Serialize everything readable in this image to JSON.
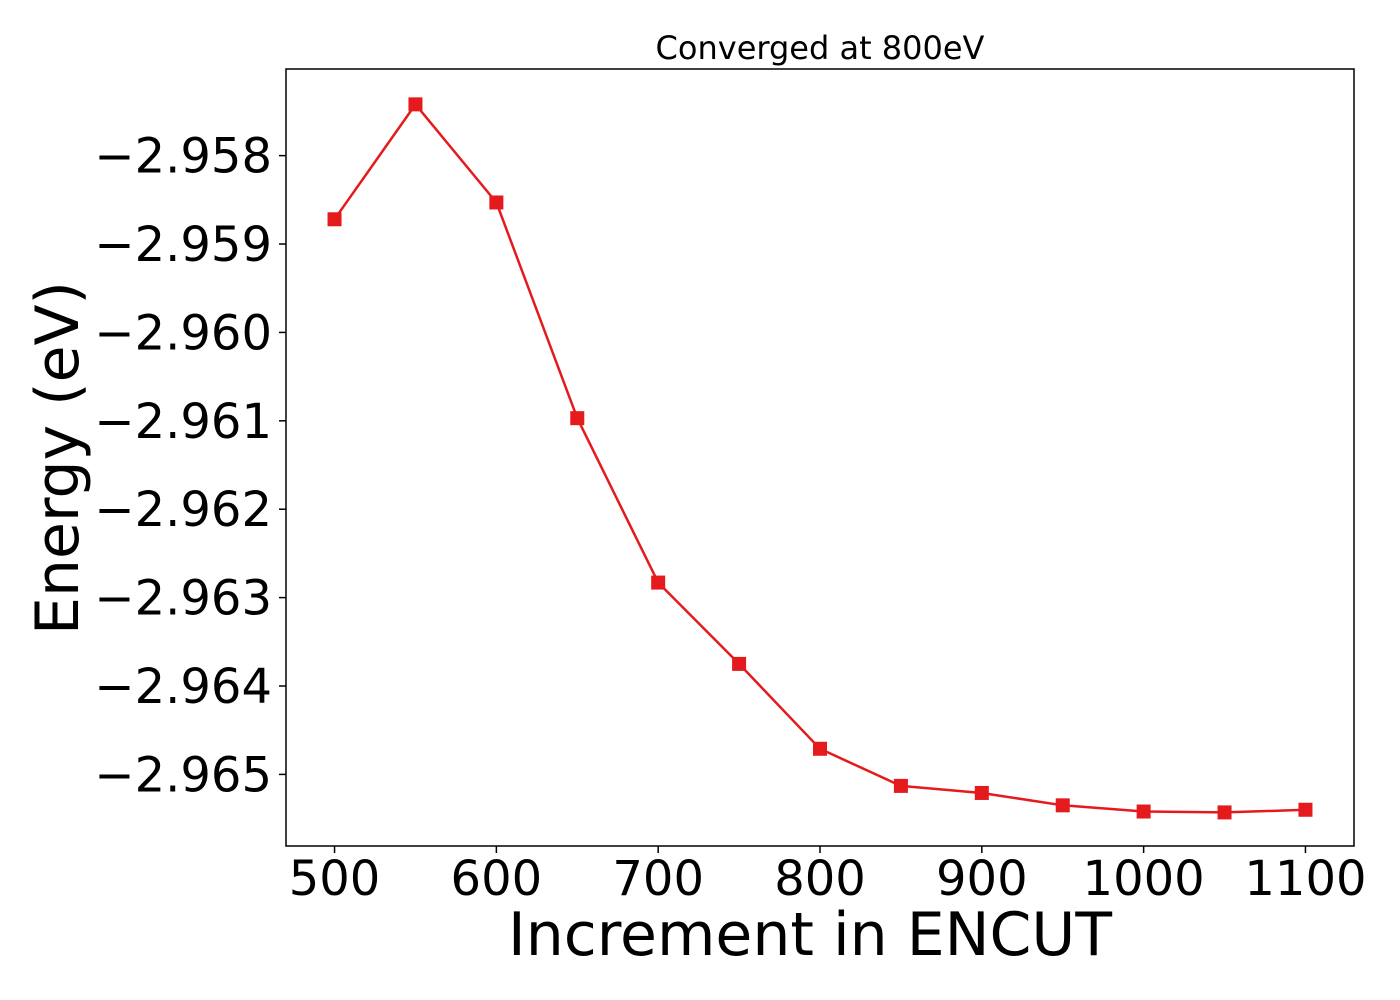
{
  "chart_data": {
    "type": "line",
    "title": "Converged at 800eV",
    "xlabel": "Increment in ENCUT",
    "ylabel": "Energy (eV)",
    "x": [
      500,
      550,
      600,
      650,
      700,
      750,
      800,
      850,
      900,
      950,
      1000,
      1050,
      1100
    ],
    "series": [
      {
        "values": [
          -2.95872,
          -2.95742,
          -2.95853,
          -2.96097,
          -2.96283,
          -2.96375,
          -2.96471,
          -2.96513,
          -2.96521,
          -2.96535,
          -2.96542,
          -2.96543,
          -2.9654
        ],
        "color": "#e41a1c",
        "marker": "square"
      }
    ],
    "xlim": [
      470,
      1130
    ],
    "ylim": [
      -2.96581,
      -2.95702
    ],
    "xticks": [
      500,
      600,
      700,
      800,
      900,
      1000,
      1100
    ],
    "xtick_labels": [
      "500",
      "600",
      "700",
      "800",
      "900",
      "1000",
      "1100"
    ],
    "yticks": [
      -2.958,
      -2.959,
      -2.96,
      -2.961,
      -2.962,
      -2.963,
      -2.964,
      -2.965
    ],
    "ytick_labels": [
      "−2.958",
      "−2.959",
      "−2.960",
      "−2.961",
      "−2.962",
      "−2.963",
      "−2.964",
      "−2.965"
    ],
    "grid": false,
    "legend": "none"
  }
}
